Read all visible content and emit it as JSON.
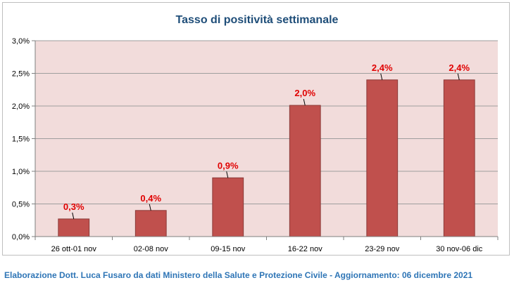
{
  "chart_data": {
    "type": "bar",
    "title": "Tasso di positività settimanale",
    "categories": [
      "26 ott-01 nov",
      "02-08 nov",
      "09-15 nov",
      "16-22 nov",
      "23-29 nov",
      "30 nov-06 dic"
    ],
    "values": [
      0.27,
      0.4,
      0.9,
      2.01,
      2.4,
      2.4
    ],
    "data_labels": [
      "0,3%",
      "0,4%",
      "0,9%",
      "2,0%",
      "2,4%",
      "2,4%"
    ],
    "y_ticks": [
      "0,0%",
      "0,5%",
      "1,0%",
      "1,5%",
      "2,0%",
      "2,5%",
      "3,0%"
    ],
    "ylim": [
      0,
      3
    ],
    "xlabel": "",
    "ylabel": "",
    "grid": true,
    "colors": {
      "bar": "#c0504d",
      "bar_border": "#8b3a38",
      "plot_background": "#f2dcdb",
      "title": "#1f4e79",
      "data_label": "#e00000",
      "footer": "#2e75b6"
    }
  },
  "footer": {
    "text": "Elaborazione Dott. Luca Fusaro da dati Ministero della Salute e Protezione Civile - Aggiornamento: 06 dicembre 2021"
  }
}
